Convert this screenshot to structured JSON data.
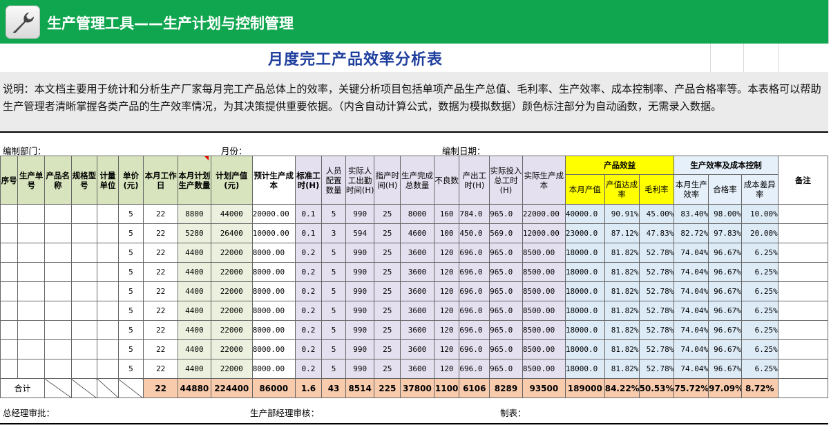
{
  "banner": {
    "title": "生产管理工具——生产计划与控制管理",
    "icon": "wrench-icon",
    "color": "#10a64f"
  },
  "title": "月度完工产品效率分析表",
  "description": "说明：本文档主要用于统计和分析生产厂家每月完工产品总体上的效率，关键分析项目包括单项产品生产总值、毛利率、生产效率、成本控制率、产品合格率等。本表格可以帮助生产管理者清晰掌握各类产品的生产效率情况，为其决策提供重要依据。（内含自动计算公式，数据为模拟数据）颜色标注部分为自动函数，无需录入数据。",
  "meta": {
    "dept": "编制部门：",
    "month": "月份：",
    "date": "编制日期："
  },
  "group_headers": {
    "benefit": "产品效益",
    "efficiency": "生产效率及成本控制",
    "remark": "备注"
  },
  "headers": [
    "序号",
    "生产单号",
    "产品名称",
    "规格型号",
    "计量单位",
    "单价(元)",
    "本月工作日",
    "本月计划生产数量",
    "计划产值(元)",
    "预计生产成本",
    "标准工时(H)",
    "人员配置数量",
    "实际人工出勤时间(H)",
    "指产时间(H)",
    "生产完成总数量",
    "不良数",
    "产出工时(H)",
    "实际投入总工时(H)",
    "实际生产成本",
    "本月产值",
    "产值达成率",
    "毛利率",
    "本月生产效率",
    "合格率",
    "成本差异率"
  ],
  "rows": [
    [
      "",
      "",
      "",
      "",
      "",
      "5",
      "22",
      "8800",
      "44000",
      "20000.00",
      "0.1",
      "5",
      "990",
      "25",
      "8000",
      "160",
      "784.0",
      "965.0",
      "22000.00",
      "40000.0",
      "90.91%",
      "45.00%",
      "83.40%",
      "98.00%",
      "10.00%"
    ],
    [
      "",
      "",
      "",
      "",
      "",
      "5",
      "22",
      "5280",
      "26400",
      "10000.00",
      "0.1",
      "3",
      "594",
      "25",
      "4600",
      "100",
      "450.0",
      "569.0",
      "12000.00",
      "23000.0",
      "87.12%",
      "47.83%",
      "82.72%",
      "97.83%",
      "20.00%"
    ],
    [
      "",
      "",
      "",
      "",
      "",
      "5",
      "22",
      "4400",
      "22000",
      "8000.00",
      "0.2",
      "5",
      "990",
      "25",
      "3600",
      "120",
      "696.0",
      "965.0",
      "8500.00",
      "18000.0",
      "81.82%",
      "52.78%",
      "74.04%",
      "96.67%",
      "6.25%"
    ],
    [
      "",
      "",
      "",
      "",
      "",
      "5",
      "22",
      "4400",
      "22000",
      "8000.00",
      "0.2",
      "5",
      "990",
      "25",
      "3600",
      "120",
      "696.0",
      "965.0",
      "8500.00",
      "18000.0",
      "81.82%",
      "52.78%",
      "74.04%",
      "96.67%",
      "6.25%"
    ],
    [
      "",
      "",
      "",
      "",
      "",
      "5",
      "22",
      "4400",
      "22000",
      "8000.00",
      "0.2",
      "5",
      "990",
      "25",
      "3600",
      "120",
      "696.0",
      "965.0",
      "8500.00",
      "18000.0",
      "81.82%",
      "52.78%",
      "74.04%",
      "96.67%",
      "6.25%"
    ],
    [
      "",
      "",
      "",
      "",
      "",
      "5",
      "22",
      "4400",
      "22000",
      "8000.00",
      "0.2",
      "5",
      "990",
      "25",
      "3600",
      "120",
      "696.0",
      "965.0",
      "8500.00",
      "18000.0",
      "81.82%",
      "52.78%",
      "74.04%",
      "96.67%",
      "6.25%"
    ],
    [
      "",
      "",
      "",
      "",
      "",
      "5",
      "22",
      "4400",
      "22000",
      "8000.00",
      "0.2",
      "5",
      "990",
      "25",
      "3600",
      "120",
      "696.0",
      "965.0",
      "8500.00",
      "18000.0",
      "81.82%",
      "52.78%",
      "74.04%",
      "96.67%",
      "6.25%"
    ],
    [
      "",
      "",
      "",
      "",
      "",
      "5",
      "22",
      "4400",
      "22000",
      "8000.00",
      "0.2",
      "5",
      "990",
      "25",
      "3600",
      "120",
      "696.0",
      "965.0",
      "8500.00",
      "18000.0",
      "81.82%",
      "52.78%",
      "74.04%",
      "96.67%",
      "6.25%"
    ],
    [
      "",
      "",
      "",
      "",
      "",
      "5",
      "22",
      "4400",
      "22000",
      "8000.00",
      "0.2",
      "5",
      "990",
      "25",
      "3600",
      "120",
      "696.0",
      "965.0",
      "8500.00",
      "18000.0",
      "81.82%",
      "52.78%",
      "74.04%",
      "96.67%",
      "6.25%"
    ]
  ],
  "total": {
    "label": "合计",
    "values": [
      "22",
      "44880",
      "224400",
      "86000",
      "1.6",
      "43",
      "8514",
      "225",
      "37800",
      "1100",
      "6106",
      "8289",
      "93500",
      "189000",
      "84.22%",
      "50.53%",
      "75.72%",
      "97.09%",
      "8.72%"
    ]
  },
  "signatures": {
    "gm": "总经理审批：",
    "pm": "生产部经理审核：",
    "maker": "制表："
  }
}
